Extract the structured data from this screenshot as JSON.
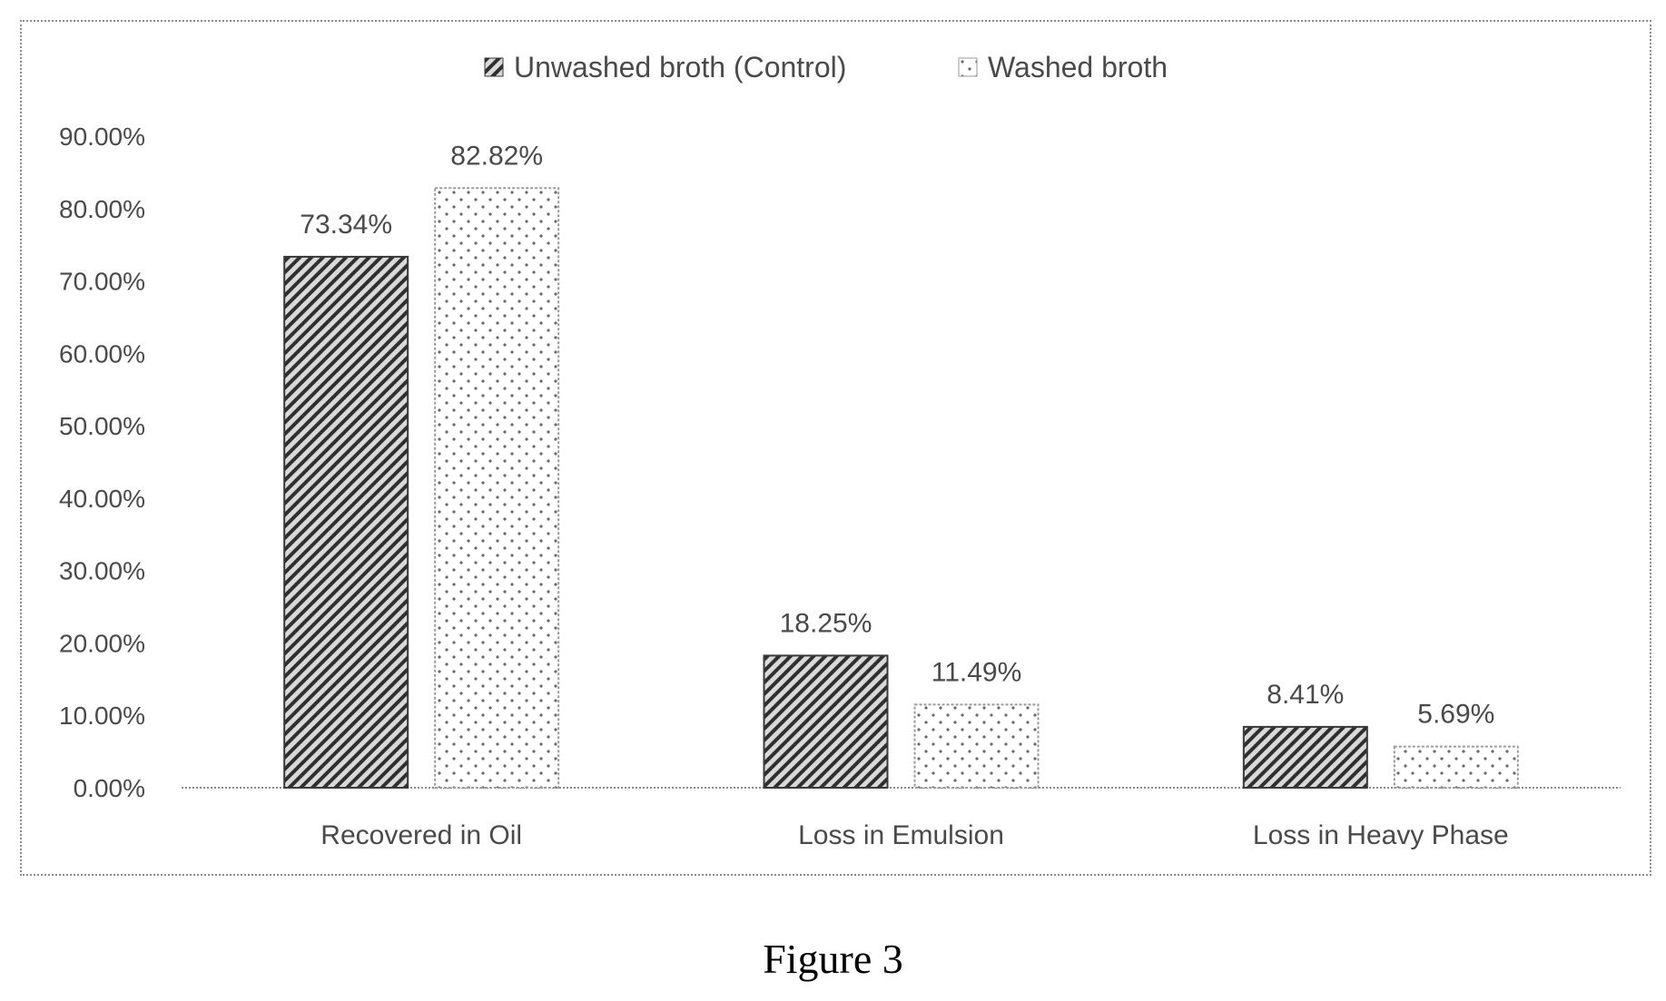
{
  "chart_data": {
    "type": "bar",
    "categories": [
      "Recovered in Oil",
      "Loss in Emulsion",
      "Loss in Heavy Phase"
    ],
    "series": [
      {
        "name": "Unwashed broth (Control)",
        "values": [
          73.34,
          18.25,
          8.41
        ],
        "labels": [
          "73.34%",
          "18.25%",
          "8.41%"
        ],
        "pattern": "diagonal-hatch",
        "color": "#3a3a3a"
      },
      {
        "name": "Washed broth",
        "values": [
          82.82,
          11.49,
          5.69
        ],
        "labels": [
          "82.82%",
          "11.49%",
          "5.69%"
        ],
        "pattern": "dots",
        "color": "#9a9a9a"
      }
    ],
    "yticks": [
      "0.00%",
      "10.00%",
      "20.00%",
      "30.00%",
      "40.00%",
      "50.00%",
      "60.00%",
      "70.00%",
      "80.00%",
      "90.00%"
    ],
    "ylim": [
      0,
      90
    ],
    "title": "",
    "xlabel": "",
    "ylabel": "",
    "legend_position": "top-center",
    "grid": false
  },
  "caption": "Figure 3"
}
